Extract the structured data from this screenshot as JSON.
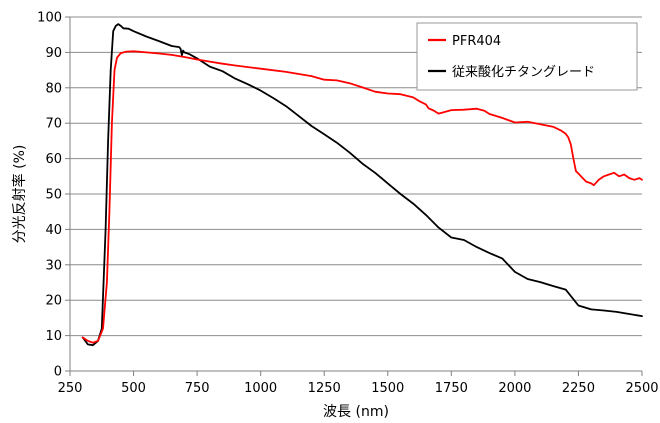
{
  "chart_data": {
    "type": "line",
    "title": "",
    "xlabel": "波長 (nm)",
    "ylabel": "分光反射率 (%)",
    "xlim": [
      250,
      2500
    ],
    "ylim": [
      0,
      100
    ],
    "x_ticks": [
      "250",
      "500",
      "750",
      "1000",
      "1250",
      "1500",
      "1750",
      "2000",
      "2250",
      "2500"
    ],
    "y_ticks": [
      "0",
      "10",
      "20",
      "30",
      "40",
      "50",
      "60",
      "70",
      "80",
      "90",
      "100"
    ],
    "grid": "horizontal",
    "legend_position": "top-right",
    "series": [
      {
        "name": "PFR404",
        "color": "#ff0000",
        "x": [
          300,
          320,
          340,
          360,
          380,
          395,
          405,
          415,
          425,
          435,
          450,
          470,
          500,
          550,
          600,
          650,
          700,
          750,
          800,
          850,
          900,
          1000,
          1100,
          1200,
          1250,
          1300,
          1350,
          1400,
          1450,
          1500,
          1550,
          1600,
          1625,
          1650,
          1660,
          1680,
          1700,
          1720,
          1750,
          1800,
          1850,
          1880,
          1900,
          1950,
          2000,
          2050,
          2100,
          2150,
          2180,
          2200,
          2210,
          2220,
          2230,
          2240,
          2260,
          2280,
          2300,
          2310,
          2330,
          2350,
          2370,
          2390,
          2410,
          2430,
          2450,
          2470,
          2490,
          2500
        ],
        "y": [
          9.5,
          8.5,
          8.0,
          8.5,
          12.0,
          25.0,
          45.0,
          70.0,
          85.0,
          88.5,
          89.8,
          90.2,
          90.3,
          90.0,
          89.7,
          89.3,
          88.7,
          88.0,
          87.4,
          86.8,
          86.3,
          85.4,
          84.5,
          83.3,
          82.3,
          82.1,
          81.3,
          80.1,
          78.9,
          78.4,
          78.2,
          77.3,
          76.2,
          75.3,
          74.2,
          73.6,
          72.7,
          73.1,
          73.7,
          73.8,
          74.1,
          73.5,
          72.6,
          71.5,
          70.2,
          70.4,
          69.7,
          69.0,
          68.0,
          67.0,
          66.0,
          64.0,
          60.0,
          56.5,
          55.0,
          53.5,
          53.0,
          52.5,
          54.0,
          55.0,
          55.5,
          56.0,
          55.0,
          55.5,
          54.5,
          54.0,
          54.5,
          54.0
        ]
      },
      {
        "name": "従来酸化チタングレード",
        "color": "#000000",
        "x": [
          300,
          320,
          340,
          360,
          375,
          390,
          400,
          410,
          420,
          430,
          440,
          450,
          460,
          480,
          500,
          550,
          600,
          650,
          680,
          685,
          690,
          695,
          700,
          720,
          750,
          800,
          850,
          900,
          950,
          1000,
          1050,
          1100,
          1150,
          1200,
          1250,
          1300,
          1350,
          1400,
          1450,
          1500,
          1550,
          1600,
          1650,
          1700,
          1750,
          1800,
          1850,
          1900,
          1950,
          2000,
          2050,
          2100,
          2150,
          2200,
          2250,
          2300,
          2350,
          2400,
          2450,
          2500
        ],
        "y": [
          9.5,
          7.5,
          7.3,
          8.5,
          12.0,
          40.0,
          65.0,
          85.0,
          96.0,
          97.5,
          98.0,
          97.5,
          96.8,
          96.7,
          96.0,
          94.5,
          93.2,
          91.8,
          91.5,
          91.0,
          89.2,
          90.5,
          90.0,
          89.5,
          88.3,
          86.0,
          84.7,
          82.6,
          81.0,
          79.2,
          77.1,
          74.8,
          72.0,
          69.2,
          66.9,
          64.5,
          61.7,
          58.6,
          56.0,
          53.0,
          50.0,
          47.3,
          44.1,
          40.5,
          37.7,
          37.0,
          35.0,
          33.3,
          31.8,
          28.0,
          26.0,
          25.1,
          24.0,
          23.0,
          18.5,
          17.4,
          17.1,
          16.7,
          16.1,
          15.5
        ]
      }
    ]
  }
}
